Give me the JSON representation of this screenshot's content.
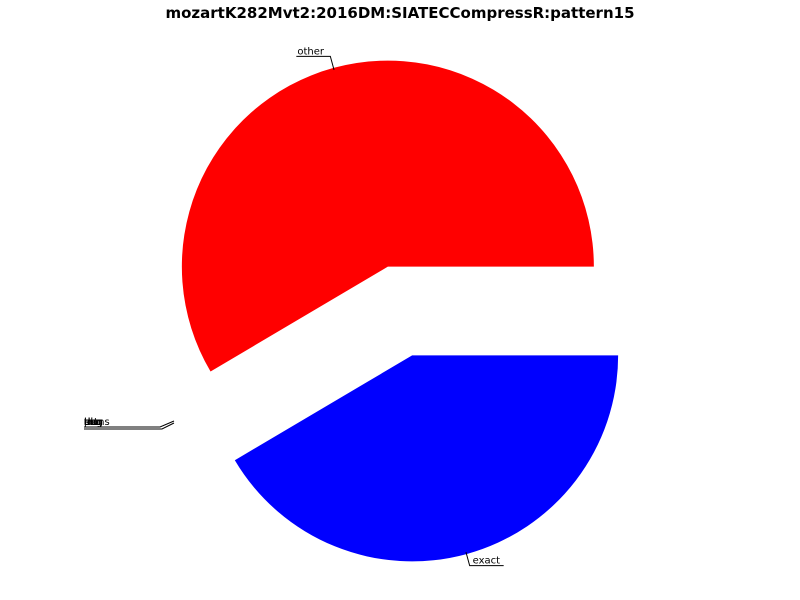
{
  "chart_data": {
    "type": "pie",
    "title": "mozartK282Mvt2:2016DM:SIATECCompressR:pattern15",
    "slices": [
      {
        "label": "exact",
        "value": 41.5,
        "color": "#0000ff",
        "exploded": true
      },
      {
        "label": "other",
        "value": 58.5,
        "color": "#ff0000",
        "exploded": true
      },
      {
        "label": "tiny-1",
        "value": 0,
        "color": "#000000",
        "exploded": true
      },
      {
        "label": "tiny-2",
        "value": 0,
        "color": "#000000",
        "exploded": true
      },
      {
        "label": "tiny-3",
        "value": 0,
        "color": "#000000",
        "exploded": true
      },
      {
        "label": "tiny-4",
        "value": 0,
        "color": "#000000",
        "exploded": true
      },
      {
        "label": "tiny-5",
        "value": 0,
        "color": "#000000",
        "exploded": true
      },
      {
        "label": "tiny-6",
        "value": 0,
        "color": "#000000",
        "exploded": true
      }
    ],
    "start_angle_deg": 0,
    "direction": "clockwise",
    "overlapping_labels": [
      "trans",
      "inv",
      "rot",
      "aug",
      "dim",
      "tl",
      "pl",
      "seq"
    ],
    "label_note": "zero-size slices with overlapping, illegible labels"
  }
}
